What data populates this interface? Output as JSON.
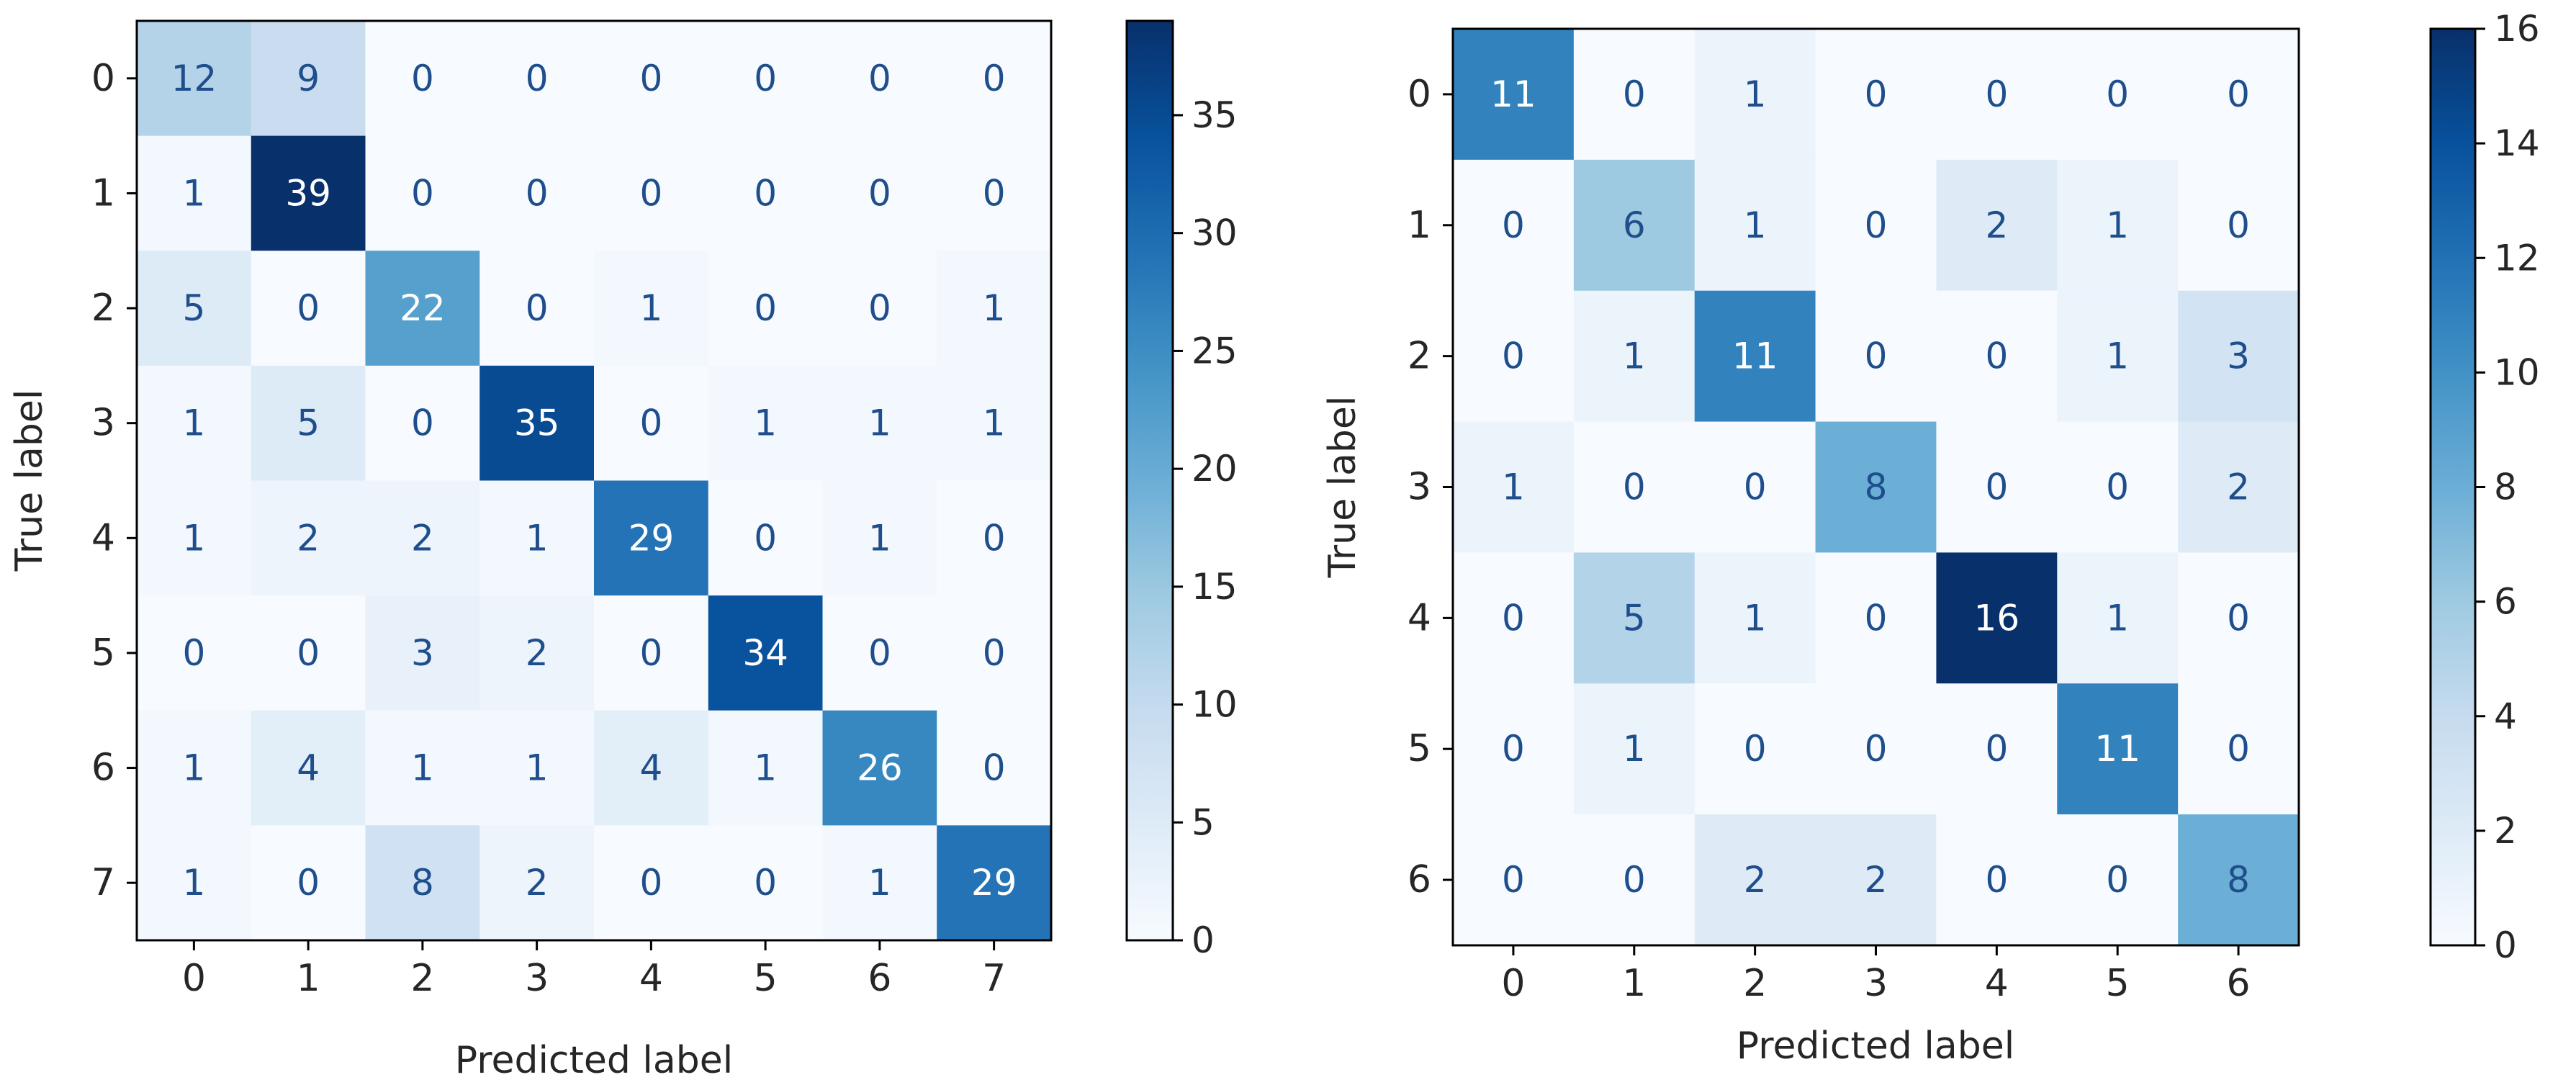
{
  "chart_data": [
    {
      "type": "heatmap",
      "xlabel": "Predicted label",
      "ylabel": "True label",
      "x_ticks": [
        "0",
        "1",
        "2",
        "3",
        "4",
        "5",
        "6",
        "7"
      ],
      "y_ticks": [
        "0",
        "1",
        "2",
        "3",
        "4",
        "5",
        "6",
        "7"
      ],
      "matrix": [
        [
          12,
          9,
          0,
          0,
          0,
          0,
          0,
          0
        ],
        [
          1,
          39,
          0,
          0,
          0,
          0,
          0,
          0
        ],
        [
          5,
          0,
          22,
          0,
          1,
          0,
          0,
          1
        ],
        [
          1,
          5,
          0,
          35,
          0,
          1,
          1,
          1
        ],
        [
          1,
          2,
          2,
          1,
          29,
          0,
          1,
          0
        ],
        [
          0,
          0,
          3,
          2,
          0,
          34,
          0,
          0
        ],
        [
          1,
          4,
          1,
          1,
          4,
          1,
          26,
          0
        ],
        [
          1,
          0,
          8,
          2,
          0,
          0,
          1,
          29
        ]
      ],
      "colorbar": {
        "min": 0,
        "max": 39,
        "ticks": [
          0,
          5,
          10,
          15,
          20,
          25,
          30,
          35
        ]
      },
      "colormap": "Blues"
    },
    {
      "type": "heatmap",
      "xlabel": "Predicted label",
      "ylabel": "True label",
      "x_ticks": [
        "0",
        "1",
        "2",
        "3",
        "4",
        "5",
        "6"
      ],
      "y_ticks": [
        "0",
        "1",
        "2",
        "3",
        "4",
        "5",
        "6"
      ],
      "matrix": [
        [
          11,
          0,
          1,
          0,
          0,
          0,
          0
        ],
        [
          0,
          6,
          1,
          0,
          2,
          1,
          0
        ],
        [
          0,
          1,
          11,
          0,
          0,
          1,
          3
        ],
        [
          1,
          0,
          0,
          8,
          0,
          0,
          2
        ],
        [
          0,
          5,
          1,
          0,
          16,
          1,
          0
        ],
        [
          0,
          1,
          0,
          0,
          0,
          11,
          0
        ],
        [
          0,
          0,
          2,
          2,
          0,
          0,
          8
        ]
      ],
      "colorbar": {
        "min": 0,
        "max": 16,
        "ticks": [
          0,
          2,
          4,
          6,
          8,
          10,
          12,
          14,
          16
        ]
      },
      "colormap": "Blues"
    }
  ]
}
